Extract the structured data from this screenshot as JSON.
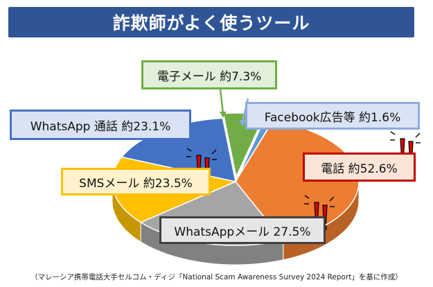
{
  "title": "詐欺師がよく使うツール",
  "source_note": "（マレーシア携帯電話大手セルコム・ディジ「National Scam Awareness Survey 2024 Report」を基に作成）",
  "chart_data": {
    "type": "pie",
    "title": "詐欺師がよく使うツール",
    "slices": [
      {
        "label": "電話 約52.6%",
        "value": 52.6,
        "color": "#ed7d31"
      },
      {
        "label": "WhatsAppメール 27.5%",
        "value": 27.5,
        "color": "#a5a5a5"
      },
      {
        "label": "SMSメール 約23.5%",
        "value": 23.5,
        "color": "#ffc000"
      },
      {
        "label": "WhatsApp 通話 約23.1%",
        "value": 23.1,
        "color": "#4472c4"
      },
      {
        "label": "電子メール 約7.3%",
        "value": 7.3,
        "color": "#70ad47"
      },
      {
        "label": "Facebook広告等 約1.6%",
        "value": 1.6,
        "color": "#5b9bd5"
      }
    ]
  },
  "label_styles": [
    {
      "border": "#c00000",
      "bg": "#fbe5d6"
    },
    {
      "border": "#404040",
      "bg": "#e7e6e6"
    },
    {
      "border": "#ffc000",
      "bg": "#fff2cc"
    },
    {
      "border": "#4472c4",
      "bg": "#dae3f3"
    },
    {
      "border": "#70ad47",
      "bg": "#e2f0d9"
    },
    {
      "border": "#8faadc",
      "bg": "#dae3f3"
    }
  ],
  "icons": {
    "alert": "exclamation-alert-icon"
  }
}
